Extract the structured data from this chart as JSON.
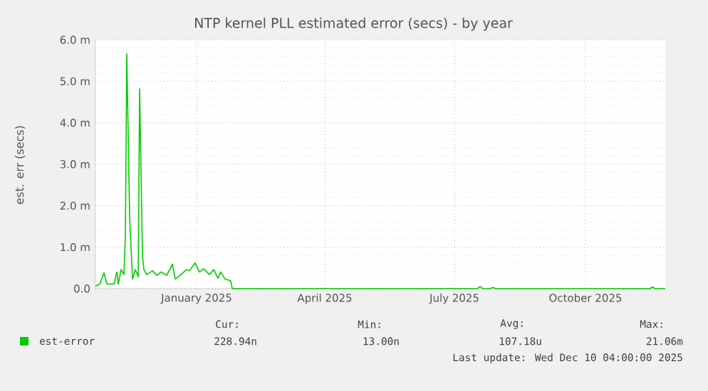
{
  "chart_data": {
    "type": "line",
    "title": "NTP kernel PLL estimated error (secs) - by year",
    "ylabel": "est. err (secs)",
    "x": [
      "2024-10-22",
      "2024-10-25",
      "2024-10-28",
      "2024-10-30",
      "2024-11-04",
      "2024-11-06",
      "2024-11-07",
      "2024-11-09",
      "2024-11-11",
      "2024-11-12",
      "2024-11-13",
      "2024-11-15",
      "2024-11-17",
      "2024-11-19",
      "2024-11-21",
      "2024-11-22",
      "2024-11-24",
      "2024-11-25",
      "2024-11-27",
      "2024-12-01",
      "2024-12-04",
      "2024-12-07",
      "2024-12-11",
      "2024-12-15",
      "2024-12-17",
      "2024-12-21",
      "2024-12-25",
      "2024-12-27",
      "2024-12-31",
      "2025-01-03",
      "2025-01-06",
      "2025-01-10",
      "2025-01-13",
      "2025-01-16",
      "2025-01-18",
      "2025-01-21",
      "2025-01-25",
      "2025-01-26",
      "2025-07-17",
      "2025-07-19",
      "2025-07-21",
      "2025-07-26",
      "2025-07-28",
      "2025-07-30",
      "2025-11-15",
      "2025-11-17",
      "2025-11-19",
      "2025-11-26"
    ],
    "series": [
      {
        "name": "est-error",
        "color": "#00cc00",
        "values": [
          0.06,
          0.11,
          0.38,
          0.11,
          0.11,
          0.4,
          0.11,
          0.46,
          0.34,
          1.26,
          5.66,
          1.71,
          0.23,
          0.46,
          0.29,
          4.82,
          0.8,
          0.46,
          0.34,
          0.43,
          0.32,
          0.4,
          0.32,
          0.59,
          0.23,
          0.34,
          0.46,
          0.43,
          0.62,
          0.4,
          0.48,
          0.34,
          0.46,
          0.25,
          0.4,
          0.23,
          0.19,
          0,
          0,
          0.05,
          0,
          0,
          0.03,
          0,
          0,
          0.04,
          0,
          0
        ]
      }
    ],
    "xlim": [
      "2024-10-22",
      "2025-11-26"
    ],
    "xticks": [
      {
        "value": "2025-01-01",
        "label": "January 2025"
      },
      {
        "value": "2025-04-01",
        "label": "April 2025"
      },
      {
        "value": "2025-07-01",
        "label": "July 2025"
      },
      {
        "value": "2025-10-01",
        "label": "October 2025"
      }
    ],
    "ylim": [
      0,
      6
    ],
    "yticks": [
      {
        "value": 0,
        "label": "0.0"
      },
      {
        "value": 1,
        "label": "1.0 m"
      },
      {
        "value": 2,
        "label": "2.0 m"
      },
      {
        "value": 3,
        "label": "3.0 m"
      },
      {
        "value": 4,
        "label": "4.0 m"
      },
      {
        "value": 5,
        "label": "5.0 m"
      },
      {
        "value": 6,
        "label": "6.0 m"
      }
    ],
    "grid": true,
    "legend": "bottom",
    "annotations": [
      "Cur:",
      "228.94n",
      "Min:",
      "13.00n",
      "Avg:",
      "107.18u",
      "Max:",
      "21.06m",
      "Last update: Wed Dec 10 04:00:00 2025"
    ]
  }
}
